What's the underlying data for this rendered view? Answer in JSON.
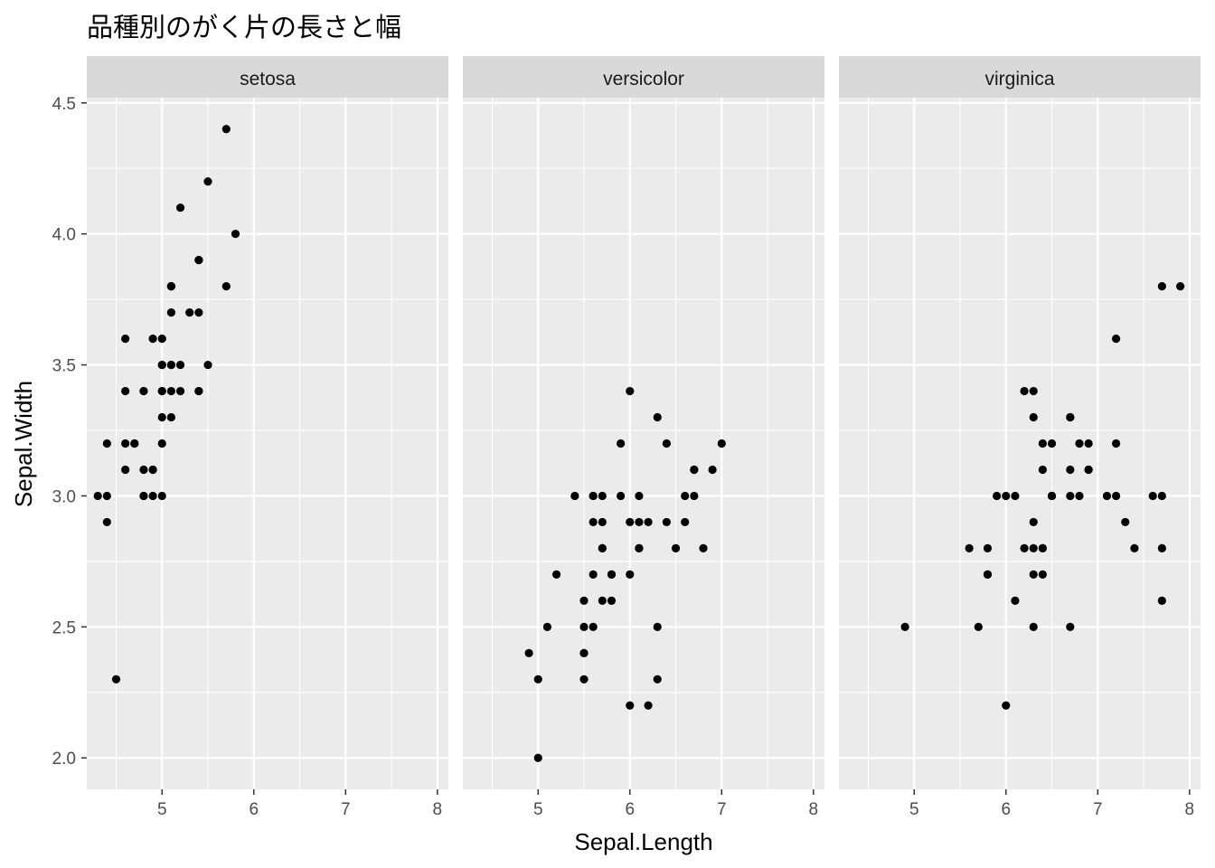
{
  "chart_data": {
    "type": "scatter",
    "title": "品種別のがく片の長さと幅",
    "xlabel": "Sepal.Length",
    "ylabel": "Sepal.Width",
    "xlim": [
      4.18,
      8.12
    ],
    "ylim": [
      1.88,
      4.52
    ],
    "x_ticks": [
      5,
      6,
      7,
      8
    ],
    "y_ticks": [
      2.0,
      2.5,
      3.0,
      3.5,
      4.0,
      4.5
    ],
    "y_tick_labels": [
      "2.0",
      "2.5",
      "3.0",
      "3.5",
      "4.0",
      "4.5"
    ],
    "grid": true,
    "colors": {
      "panel_bg": "#ebebeb",
      "strip_bg": "#d9d9d9",
      "grid_major": "#ffffff",
      "point": "#000000"
    },
    "panels": [
      {
        "label": "setosa",
        "points": [
          [
            5.1,
            3.5
          ],
          [
            4.9,
            3.0
          ],
          [
            4.7,
            3.2
          ],
          [
            4.6,
            3.1
          ],
          [
            5.0,
            3.6
          ],
          [
            5.4,
            3.9
          ],
          [
            4.6,
            3.4
          ],
          [
            5.0,
            3.4
          ],
          [
            4.4,
            2.9
          ],
          [
            4.9,
            3.1
          ],
          [
            5.4,
            3.7
          ],
          [
            4.8,
            3.4
          ],
          [
            4.8,
            3.0
          ],
          [
            4.3,
            3.0
          ],
          [
            5.8,
            4.0
          ],
          [
            5.7,
            4.4
          ],
          [
            5.4,
            3.9
          ],
          [
            5.1,
            3.5
          ],
          [
            5.7,
            3.8
          ],
          [
            5.1,
            3.8
          ],
          [
            5.4,
            3.4
          ],
          [
            5.1,
            3.7
          ],
          [
            4.6,
            3.6
          ],
          [
            5.1,
            3.3
          ],
          [
            4.8,
            3.4
          ],
          [
            5.0,
            3.0
          ],
          [
            5.0,
            3.4
          ],
          [
            5.2,
            3.5
          ],
          [
            5.2,
            3.4
          ],
          [
            4.7,
            3.2
          ],
          [
            4.8,
            3.1
          ],
          [
            5.4,
            3.4
          ],
          [
            5.2,
            4.1
          ],
          [
            5.5,
            4.2
          ],
          [
            4.9,
            3.1
          ],
          [
            5.0,
            3.2
          ],
          [
            5.5,
            3.5
          ],
          [
            4.9,
            3.6
          ],
          [
            4.4,
            3.0
          ],
          [
            5.1,
            3.4
          ],
          [
            5.0,
            3.5
          ],
          [
            4.5,
            2.3
          ],
          [
            4.4,
            3.2
          ],
          [
            5.0,
            3.5
          ],
          [
            5.1,
            3.8
          ],
          [
            4.8,
            3.0
          ],
          [
            5.1,
            3.8
          ],
          [
            4.6,
            3.2
          ],
          [
            5.3,
            3.7
          ],
          [
            5.0,
            3.3
          ]
        ]
      },
      {
        "label": "versicolor",
        "points": [
          [
            7.0,
            3.2
          ],
          [
            6.4,
            3.2
          ],
          [
            6.9,
            3.1
          ],
          [
            5.5,
            2.3
          ],
          [
            6.5,
            2.8
          ],
          [
            5.7,
            2.8
          ],
          [
            6.3,
            3.3
          ],
          [
            4.9,
            2.4
          ],
          [
            6.6,
            2.9
          ],
          [
            5.2,
            2.7
          ],
          [
            5.0,
            2.0
          ],
          [
            5.9,
            3.0
          ],
          [
            6.0,
            2.2
          ],
          [
            6.1,
            2.9
          ],
          [
            5.6,
            2.9
          ],
          [
            6.7,
            3.1
          ],
          [
            5.6,
            3.0
          ],
          [
            5.8,
            2.7
          ],
          [
            6.2,
            2.2
          ],
          [
            5.6,
            2.5
          ],
          [
            5.9,
            3.2
          ],
          [
            6.1,
            2.8
          ],
          [
            6.3,
            2.5
          ],
          [
            6.1,
            2.8
          ],
          [
            6.4,
            2.9
          ],
          [
            6.6,
            3.0
          ],
          [
            6.8,
            2.8
          ],
          [
            6.7,
            3.0
          ],
          [
            6.0,
            2.9
          ],
          [
            5.7,
            2.6
          ],
          [
            5.5,
            2.4
          ],
          [
            5.5,
            2.4
          ],
          [
            5.8,
            2.7
          ],
          [
            6.0,
            2.7
          ],
          [
            5.4,
            3.0
          ],
          [
            6.0,
            3.4
          ],
          [
            6.7,
            3.1
          ],
          [
            6.3,
            2.3
          ],
          [
            5.6,
            3.0
          ],
          [
            5.5,
            2.5
          ],
          [
            5.5,
            2.6
          ],
          [
            6.1,
            3.0
          ],
          [
            5.8,
            2.6
          ],
          [
            5.0,
            2.3
          ],
          [
            5.6,
            2.7
          ],
          [
            5.7,
            3.0
          ],
          [
            5.7,
            2.9
          ],
          [
            6.2,
            2.9
          ],
          [
            5.1,
            2.5
          ],
          [
            5.7,
            2.8
          ]
        ]
      },
      {
        "label": "virginica",
        "points": [
          [
            6.3,
            3.3
          ],
          [
            5.8,
            2.7
          ],
          [
            7.1,
            3.0
          ],
          [
            6.3,
            2.9
          ],
          [
            6.5,
            3.0
          ],
          [
            7.6,
            3.0
          ],
          [
            4.9,
            2.5
          ],
          [
            7.3,
            2.9
          ],
          [
            6.7,
            2.5
          ],
          [
            7.2,
            3.6
          ],
          [
            6.5,
            3.2
          ],
          [
            6.4,
            2.7
          ],
          [
            6.8,
            3.0
          ],
          [
            5.7,
            2.5
          ],
          [
            5.8,
            2.8
          ],
          [
            6.4,
            3.2
          ],
          [
            6.5,
            3.0
          ],
          [
            7.7,
            3.8
          ],
          [
            7.7,
            2.6
          ],
          [
            6.0,
            2.2
          ],
          [
            6.9,
            3.2
          ],
          [
            5.6,
            2.8
          ],
          [
            7.7,
            2.8
          ],
          [
            6.3,
            2.7
          ],
          [
            6.7,
            3.3
          ],
          [
            7.2,
            3.2
          ],
          [
            6.2,
            2.8
          ],
          [
            6.1,
            3.0
          ],
          [
            6.4,
            2.8
          ],
          [
            7.2,
            3.0
          ],
          [
            7.4,
            2.8
          ],
          [
            7.9,
            3.8
          ],
          [
            6.4,
            2.8
          ],
          [
            6.3,
            2.8
          ],
          [
            6.1,
            2.6
          ],
          [
            7.7,
            3.0
          ],
          [
            6.3,
            3.4
          ],
          [
            6.4,
            3.1
          ],
          [
            6.0,
            3.0
          ],
          [
            6.9,
            3.1
          ],
          [
            6.7,
            3.1
          ],
          [
            6.9,
            3.1
          ],
          [
            5.8,
            2.7
          ],
          [
            6.8,
            3.2
          ],
          [
            6.7,
            3.3
          ],
          [
            6.7,
            3.0
          ],
          [
            6.3,
            2.5
          ],
          [
            6.5,
            3.0
          ],
          [
            6.2,
            3.4
          ],
          [
            5.9,
            3.0
          ]
        ]
      }
    ]
  }
}
